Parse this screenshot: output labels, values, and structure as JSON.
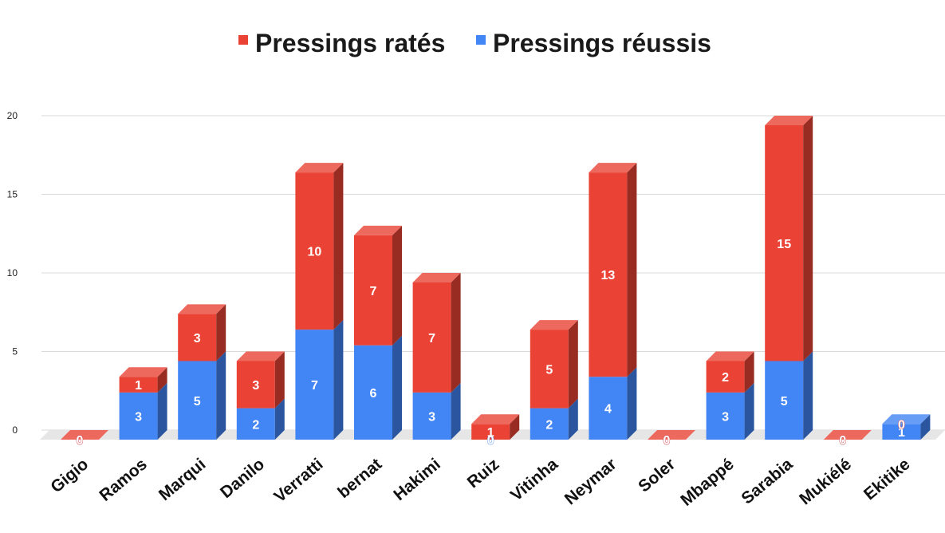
{
  "chart_data": {
    "type": "bar",
    "stacked": true,
    "three_d": true,
    "title": "",
    "xlabel": "",
    "ylabel": "",
    "ylim": [
      0,
      20
    ],
    "yticks": [
      "0",
      "5",
      "10",
      "15",
      "20"
    ],
    "grid": true,
    "legend_position": "top",
    "categories": [
      "Gigio",
      "Ramos",
      "Marqui",
      "Danilo",
      "Verratti",
      "bernat",
      "Hakimi",
      "Ruiz",
      "Vitinha",
      "Neymar",
      "Soler",
      "Mbappé",
      "Sarabia",
      "Mukiélé",
      "Ekitike"
    ],
    "series": [
      {
        "name": "Pressings réussis",
        "color": "#4285f4",
        "values": [
          0,
          3,
          5,
          2,
          7,
          6,
          3,
          0,
          2,
          4,
          0,
          3,
          5,
          0,
          1
        ],
        "labels": [
          "0",
          "3",
          "5",
          "2",
          "7",
          "6",
          "3",
          "0",
          "2",
          "4",
          "0",
          "3",
          "5",
          "0",
          "1"
        ]
      },
      {
        "name": "Pressings ratés",
        "color": "#ea4335",
        "values": [
          0,
          1,
          3,
          3,
          10,
          7,
          7,
          1,
          5,
          13,
          0,
          2,
          15,
          0,
          0
        ],
        "labels": [
          "0",
          "1",
          "3",
          "3",
          "10",
          "7",
          "7",
          "1",
          "5",
          "13",
          "0",
          "2",
          "15",
          "0",
          "0"
        ]
      }
    ],
    "legend_order": [
      "Pressings ratés",
      "Pressings réussis"
    ]
  }
}
